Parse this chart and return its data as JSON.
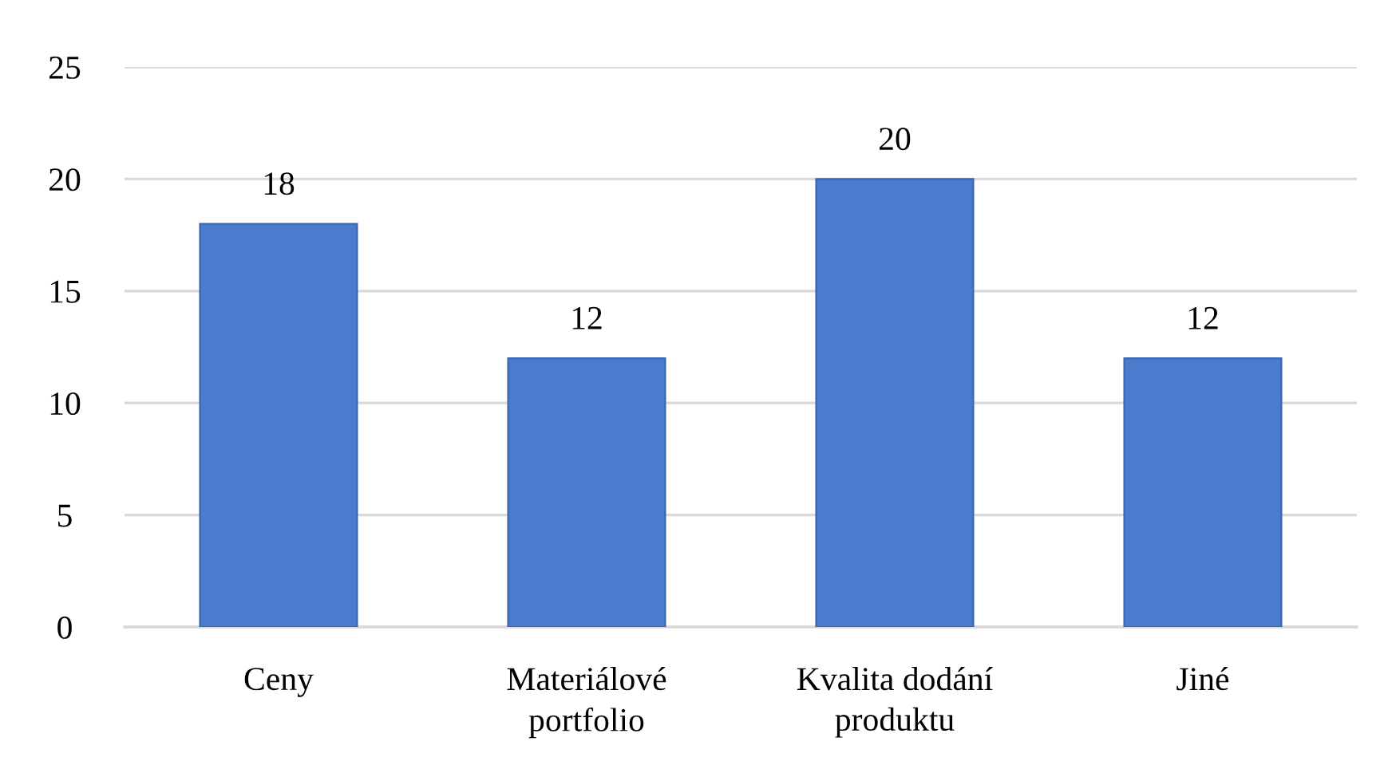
{
  "chart_data": {
    "type": "bar",
    "categories": [
      "Ceny",
      "Materiálové\nportfolio",
      "Kvalita dodání\nproduktu",
      "Jiné"
    ],
    "values": [
      18,
      12,
      20,
      12
    ],
    "color": "#4a7bcf",
    "ylim": [
      0,
      25
    ],
    "yticks": [
      0,
      5,
      10,
      15,
      20,
      25
    ],
    "grid": "y",
    "data_labels": true
  }
}
